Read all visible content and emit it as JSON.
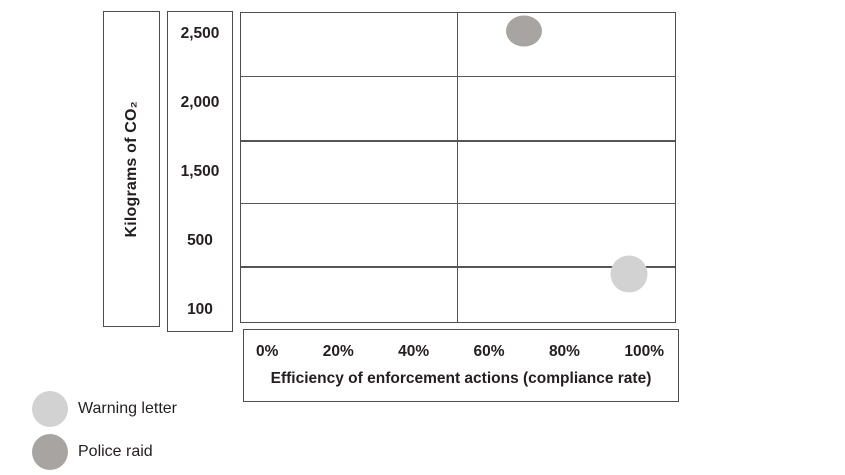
{
  "chart_data": {
    "type": "scatter",
    "title": "",
    "xlabel": "Efficiency of enforcement actions (compliance rate)",
    "ylabel": "Kilograms of CO₂",
    "x_ticks": [
      "0%",
      "20%",
      "40%",
      "60%",
      "80%",
      "100%"
    ],
    "y_ticks": [
      "2,500",
      "2,000",
      "1,500",
      "500",
      "100"
    ],
    "xlim": [
      0,
      100
    ],
    "grid": {
      "h_divisions": 5,
      "v_divisions": 2,
      "visible": true
    },
    "legend": {
      "position": "bottom-left",
      "items": [
        {
          "label": "Warning letter",
          "color": "#d2d2d2"
        },
        {
          "label": "Police raid",
          "color": "#a8a4a2"
        }
      ]
    },
    "series": [
      {
        "name": "Police raid",
        "color": "#a8a4a2",
        "points": [
          {
            "x_compliance_pct": 65,
            "y_kg_co2": 2500,
            "left_frac": 0.651,
            "top_frac": 0.058,
            "w": 36,
            "h": 31
          }
        ]
      },
      {
        "name": "Warning letter",
        "color": "#d2d2d2",
        "points": [
          {
            "x_compliance_pct": 90,
            "y_kg_co2": 300,
            "left_frac": 0.894,
            "top_frac": 0.846,
            "w": 37,
            "h": 37
          }
        ]
      }
    ]
  }
}
